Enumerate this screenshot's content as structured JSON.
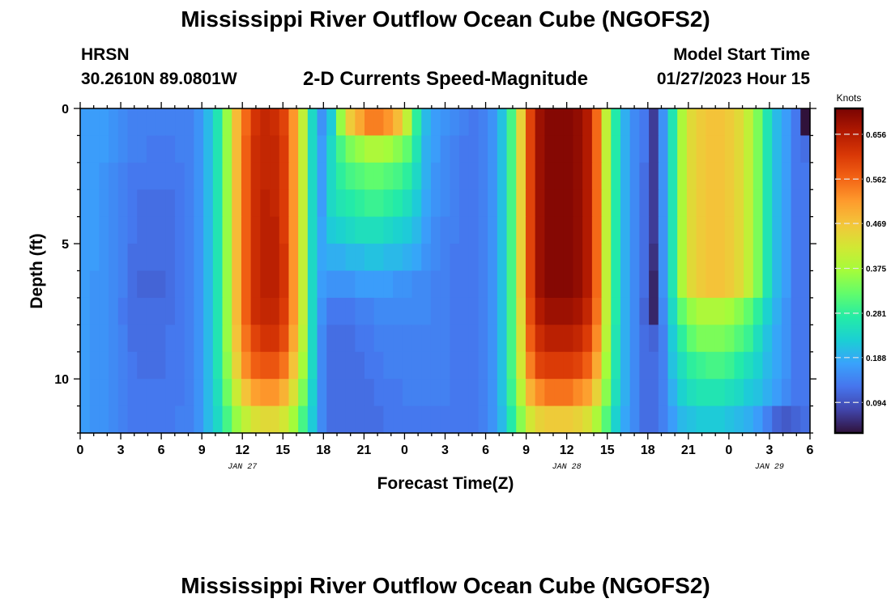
{
  "header": {
    "title": "Mississippi River Outflow Ocean Cube (NGOFS2)",
    "station": "HRSN",
    "coords": "30.2610N  89.0801W",
    "subtitle": "2-D Currents Speed-Magnitude",
    "start_label": "Model Start Time",
    "start_value": "01/27/2023 Hour 15"
  },
  "footer": {
    "title": "Mississippi River Outflow Ocean Cube (NGOFS2)"
  },
  "chart_data": {
    "type": "heatmap",
    "xlabel": "Forecast Time(Z)",
    "ylabel": "Depth (ft)",
    "colorbar_label": "Knots",
    "x_ticks": [
      "0",
      "3",
      "6",
      "9",
      "12",
      "15",
      "18",
      "21",
      "0",
      "3",
      "6",
      "9",
      "12",
      "15",
      "18",
      "21",
      "0",
      "3",
      "6"
    ],
    "date_labels": [
      {
        "label": "JAN 27",
        "hour": 12
      },
      {
        "label": "JAN 28",
        "hour": 36
      },
      {
        "label": "JAN 29",
        "hour": 51
      }
    ],
    "y_ticks": [
      "0",
      "5",
      "10"
    ],
    "xlim_hours": [
      0,
      54
    ],
    "ylim_ft": [
      0,
      12
    ],
    "colorbar_ticks": [
      "0.094",
      "0.188",
      "0.281",
      "0.375",
      "0.469",
      "0.562",
      "0.656"
    ],
    "color_range": [
      0.03,
      0.71
    ],
    "colors": [
      "#30123b",
      "#4145ab",
      "#4675ed",
      "#39a2fc",
      "#1bcfd4",
      "#24eca6",
      "#61fc6c",
      "#a4fc3b",
      "#d1e834",
      "#f3c63a",
      "#fe9b2d",
      "#f36315",
      "#d93806",
      "#b11901",
      "#7a0403"
    ],
    "depth_levels_ft": [
      0.5,
      1.5,
      2.5,
      3.5,
      4.5,
      5.5,
      6.5,
      7.5,
      8.5,
      9.5,
      10.5,
      11.5
    ],
    "speed_kn": [
      [
        0.17,
        0.17,
        0.17,
        0.16,
        0.15,
        0.14,
        0.14,
        0.14,
        0.14,
        0.14,
        0.14,
        0.14,
        0.16,
        0.2,
        0.26,
        0.36,
        0.48,
        0.56,
        0.62,
        0.64,
        0.63,
        0.6,
        0.52,
        0.4,
        0.24,
        0.16,
        0.22,
        0.36,
        0.46,
        0.5,
        0.54,
        0.54,
        0.52,
        0.48,
        0.4,
        0.28,
        0.2,
        0.17,
        0.16,
        0.15,
        0.14,
        0.13,
        0.14,
        0.16,
        0.21,
        0.3,
        0.45,
        0.6,
        0.68,
        0.7,
        0.7,
        0.7,
        0.69,
        0.66,
        0.56,
        0.4,
        0.27,
        0.19,
        0.15,
        0.13,
        0.07,
        0.16,
        0.26,
        0.38,
        0.44,
        0.46,
        0.47,
        0.47,
        0.46,
        0.44,
        0.4,
        0.34,
        0.26,
        0.2,
        0.17,
        0.13,
        0.03
      ],
      [
        0.17,
        0.17,
        0.17,
        0.16,
        0.15,
        0.14,
        0.14,
        0.13,
        0.13,
        0.13,
        0.14,
        0.14,
        0.16,
        0.2,
        0.26,
        0.36,
        0.48,
        0.57,
        0.63,
        0.64,
        0.64,
        0.61,
        0.52,
        0.4,
        0.24,
        0.17,
        0.24,
        0.3,
        0.34,
        0.36,
        0.38,
        0.38,
        0.37,
        0.35,
        0.32,
        0.26,
        0.19,
        0.17,
        0.15,
        0.14,
        0.13,
        0.13,
        0.14,
        0.16,
        0.21,
        0.3,
        0.45,
        0.6,
        0.68,
        0.7,
        0.7,
        0.7,
        0.69,
        0.66,
        0.56,
        0.4,
        0.27,
        0.19,
        0.15,
        0.13,
        0.07,
        0.16,
        0.26,
        0.38,
        0.44,
        0.46,
        0.47,
        0.47,
        0.46,
        0.44,
        0.4,
        0.34,
        0.26,
        0.2,
        0.17,
        0.13,
        0.12
      ],
      [
        0.17,
        0.17,
        0.16,
        0.15,
        0.14,
        0.13,
        0.13,
        0.13,
        0.13,
        0.13,
        0.13,
        0.14,
        0.16,
        0.2,
        0.26,
        0.36,
        0.48,
        0.57,
        0.63,
        0.64,
        0.64,
        0.61,
        0.52,
        0.4,
        0.24,
        0.17,
        0.24,
        0.28,
        0.3,
        0.31,
        0.32,
        0.32,
        0.31,
        0.3,
        0.28,
        0.24,
        0.19,
        0.16,
        0.15,
        0.14,
        0.13,
        0.13,
        0.14,
        0.16,
        0.21,
        0.3,
        0.45,
        0.6,
        0.68,
        0.7,
        0.7,
        0.7,
        0.69,
        0.66,
        0.56,
        0.4,
        0.27,
        0.19,
        0.15,
        0.12,
        0.07,
        0.16,
        0.26,
        0.38,
        0.44,
        0.46,
        0.47,
        0.47,
        0.46,
        0.44,
        0.4,
        0.34,
        0.26,
        0.2,
        0.17,
        0.13,
        0.13
      ],
      [
        0.17,
        0.17,
        0.16,
        0.15,
        0.14,
        0.13,
        0.12,
        0.12,
        0.12,
        0.12,
        0.13,
        0.14,
        0.16,
        0.2,
        0.26,
        0.36,
        0.48,
        0.57,
        0.63,
        0.65,
        0.64,
        0.61,
        0.52,
        0.4,
        0.24,
        0.17,
        0.24,
        0.26,
        0.27,
        0.28,
        0.29,
        0.29,
        0.28,
        0.27,
        0.25,
        0.22,
        0.18,
        0.16,
        0.15,
        0.14,
        0.13,
        0.13,
        0.14,
        0.16,
        0.21,
        0.3,
        0.45,
        0.6,
        0.68,
        0.7,
        0.7,
        0.7,
        0.69,
        0.66,
        0.56,
        0.4,
        0.27,
        0.19,
        0.15,
        0.12,
        0.07,
        0.16,
        0.26,
        0.38,
        0.44,
        0.46,
        0.47,
        0.47,
        0.46,
        0.44,
        0.4,
        0.34,
        0.26,
        0.2,
        0.17,
        0.13,
        0.13
      ],
      [
        0.17,
        0.17,
        0.16,
        0.15,
        0.14,
        0.13,
        0.12,
        0.12,
        0.12,
        0.12,
        0.13,
        0.14,
        0.16,
        0.2,
        0.26,
        0.36,
        0.48,
        0.57,
        0.63,
        0.65,
        0.65,
        0.61,
        0.52,
        0.4,
        0.24,
        0.18,
        0.22,
        0.23,
        0.24,
        0.25,
        0.25,
        0.25,
        0.24,
        0.23,
        0.22,
        0.2,
        0.17,
        0.15,
        0.14,
        0.14,
        0.13,
        0.13,
        0.14,
        0.16,
        0.21,
        0.3,
        0.45,
        0.6,
        0.68,
        0.7,
        0.7,
        0.7,
        0.69,
        0.66,
        0.56,
        0.4,
        0.27,
        0.19,
        0.15,
        0.12,
        0.07,
        0.16,
        0.26,
        0.38,
        0.44,
        0.46,
        0.47,
        0.47,
        0.46,
        0.44,
        0.4,
        0.34,
        0.26,
        0.2,
        0.17,
        0.13,
        0.13
      ],
      [
        0.17,
        0.17,
        0.16,
        0.15,
        0.14,
        0.12,
        0.12,
        0.12,
        0.12,
        0.12,
        0.13,
        0.14,
        0.16,
        0.2,
        0.26,
        0.36,
        0.48,
        0.57,
        0.63,
        0.65,
        0.65,
        0.62,
        0.52,
        0.4,
        0.24,
        0.18,
        0.19,
        0.19,
        0.2,
        0.2,
        0.21,
        0.21,
        0.2,
        0.2,
        0.19,
        0.18,
        0.16,
        0.15,
        0.14,
        0.13,
        0.13,
        0.13,
        0.14,
        0.16,
        0.21,
        0.3,
        0.45,
        0.6,
        0.68,
        0.7,
        0.7,
        0.7,
        0.69,
        0.66,
        0.56,
        0.4,
        0.27,
        0.19,
        0.15,
        0.12,
        0.06,
        0.16,
        0.26,
        0.38,
        0.44,
        0.46,
        0.47,
        0.47,
        0.46,
        0.44,
        0.4,
        0.34,
        0.26,
        0.2,
        0.17,
        0.13,
        0.13
      ],
      [
        0.17,
        0.16,
        0.16,
        0.15,
        0.14,
        0.12,
        0.11,
        0.11,
        0.11,
        0.12,
        0.13,
        0.14,
        0.16,
        0.2,
        0.26,
        0.36,
        0.48,
        0.57,
        0.63,
        0.65,
        0.65,
        0.62,
        0.52,
        0.4,
        0.24,
        0.17,
        0.16,
        0.16,
        0.16,
        0.17,
        0.17,
        0.17,
        0.17,
        0.16,
        0.16,
        0.15,
        0.15,
        0.14,
        0.14,
        0.13,
        0.13,
        0.13,
        0.14,
        0.16,
        0.21,
        0.3,
        0.45,
        0.6,
        0.68,
        0.7,
        0.7,
        0.7,
        0.69,
        0.66,
        0.56,
        0.4,
        0.27,
        0.19,
        0.15,
        0.12,
        0.05,
        0.16,
        0.26,
        0.38,
        0.44,
        0.46,
        0.47,
        0.47,
        0.46,
        0.44,
        0.4,
        0.34,
        0.26,
        0.2,
        0.17,
        0.13,
        0.13
      ],
      [
        0.17,
        0.16,
        0.16,
        0.15,
        0.13,
        0.12,
        0.12,
        0.12,
        0.12,
        0.12,
        0.13,
        0.14,
        0.16,
        0.2,
        0.26,
        0.36,
        0.48,
        0.57,
        0.63,
        0.64,
        0.64,
        0.61,
        0.52,
        0.4,
        0.24,
        0.16,
        0.13,
        0.13,
        0.13,
        0.14,
        0.14,
        0.15,
        0.15,
        0.15,
        0.15,
        0.15,
        0.15,
        0.14,
        0.14,
        0.13,
        0.13,
        0.13,
        0.14,
        0.16,
        0.21,
        0.3,
        0.44,
        0.59,
        0.66,
        0.68,
        0.68,
        0.68,
        0.67,
        0.64,
        0.55,
        0.4,
        0.27,
        0.19,
        0.15,
        0.11,
        0.05,
        0.15,
        0.24,
        0.32,
        0.36,
        0.38,
        0.38,
        0.38,
        0.37,
        0.35,
        0.32,
        0.28,
        0.23,
        0.19,
        0.16,
        0.13,
        0.13
      ],
      [
        0.17,
        0.16,
        0.16,
        0.15,
        0.14,
        0.12,
        0.12,
        0.12,
        0.12,
        0.13,
        0.13,
        0.14,
        0.16,
        0.2,
        0.26,
        0.36,
        0.47,
        0.55,
        0.6,
        0.62,
        0.62,
        0.59,
        0.5,
        0.39,
        0.24,
        0.15,
        0.12,
        0.12,
        0.12,
        0.13,
        0.13,
        0.14,
        0.14,
        0.14,
        0.14,
        0.14,
        0.14,
        0.14,
        0.14,
        0.13,
        0.13,
        0.13,
        0.14,
        0.16,
        0.21,
        0.3,
        0.43,
        0.57,
        0.63,
        0.65,
        0.65,
        0.65,
        0.64,
        0.61,
        0.53,
        0.39,
        0.26,
        0.19,
        0.15,
        0.12,
        0.11,
        0.14,
        0.22,
        0.28,
        0.32,
        0.34,
        0.34,
        0.34,
        0.33,
        0.31,
        0.29,
        0.25,
        0.21,
        0.18,
        0.16,
        0.13,
        0.13
      ],
      [
        0.17,
        0.16,
        0.16,
        0.15,
        0.14,
        0.13,
        0.12,
        0.12,
        0.12,
        0.13,
        0.13,
        0.14,
        0.16,
        0.2,
        0.26,
        0.35,
        0.45,
        0.53,
        0.57,
        0.58,
        0.58,
        0.55,
        0.47,
        0.37,
        0.24,
        0.15,
        0.12,
        0.12,
        0.12,
        0.12,
        0.13,
        0.13,
        0.14,
        0.14,
        0.14,
        0.14,
        0.14,
        0.14,
        0.14,
        0.13,
        0.13,
        0.13,
        0.14,
        0.16,
        0.21,
        0.3,
        0.42,
        0.54,
        0.6,
        0.61,
        0.61,
        0.61,
        0.6,
        0.57,
        0.5,
        0.37,
        0.26,
        0.19,
        0.15,
        0.12,
        0.12,
        0.14,
        0.21,
        0.25,
        0.28,
        0.29,
        0.3,
        0.3,
        0.29,
        0.27,
        0.25,
        0.23,
        0.2,
        0.18,
        0.16,
        0.13,
        0.13
      ],
      [
        0.17,
        0.16,
        0.16,
        0.15,
        0.14,
        0.13,
        0.13,
        0.13,
        0.13,
        0.13,
        0.13,
        0.14,
        0.16,
        0.2,
        0.25,
        0.33,
        0.41,
        0.47,
        0.51,
        0.52,
        0.52,
        0.49,
        0.43,
        0.34,
        0.23,
        0.15,
        0.12,
        0.12,
        0.12,
        0.12,
        0.12,
        0.13,
        0.13,
        0.13,
        0.14,
        0.14,
        0.14,
        0.14,
        0.14,
        0.13,
        0.13,
        0.13,
        0.14,
        0.16,
        0.21,
        0.29,
        0.39,
        0.49,
        0.53,
        0.55,
        0.55,
        0.55,
        0.53,
        0.51,
        0.45,
        0.35,
        0.25,
        0.19,
        0.15,
        0.12,
        0.12,
        0.14,
        0.19,
        0.23,
        0.25,
        0.26,
        0.26,
        0.26,
        0.25,
        0.24,
        0.22,
        0.21,
        0.19,
        0.17,
        0.15,
        0.13,
        0.13
      ],
      [
        0.17,
        0.16,
        0.16,
        0.15,
        0.14,
        0.13,
        0.13,
        0.13,
        0.13,
        0.13,
        0.14,
        0.14,
        0.16,
        0.2,
        0.24,
        0.3,
        0.36,
        0.4,
        0.43,
        0.44,
        0.44,
        0.42,
        0.37,
        0.3,
        0.22,
        0.15,
        0.12,
        0.12,
        0.12,
        0.12,
        0.12,
        0.12,
        0.13,
        0.13,
        0.13,
        0.13,
        0.13,
        0.13,
        0.13,
        0.13,
        0.13,
        0.13,
        0.14,
        0.16,
        0.2,
        0.27,
        0.35,
        0.42,
        0.45,
        0.46,
        0.46,
        0.46,
        0.45,
        0.43,
        0.38,
        0.31,
        0.23,
        0.18,
        0.15,
        0.12,
        0.12,
        0.14,
        0.17,
        0.2,
        0.21,
        0.22,
        0.22,
        0.22,
        0.21,
        0.2,
        0.19,
        0.17,
        0.14,
        0.11,
        0.1,
        0.11,
        0.12
      ]
    ]
  }
}
